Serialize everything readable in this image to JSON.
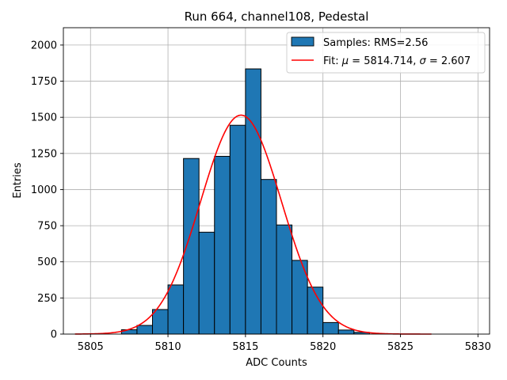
{
  "chart_data": {
    "type": "bar",
    "title": "Run 664, channel108, Pedestal",
    "xlabel": "ADC Counts",
    "ylabel": "Entries",
    "xlim": [
      5803.25,
      5830.75
    ],
    "ylim": [
      0,
      2120
    ],
    "xticks": [
      5805,
      5810,
      5815,
      5820,
      5825,
      5830
    ],
    "yticks": [
      0,
      250,
      500,
      750,
      1000,
      1250,
      1500,
      1750,
      2000
    ],
    "grid": true,
    "legend_position": "top-right",
    "histogram": {
      "name": "Samples: RMS=2.56",
      "bin_edges": [
        5807,
        5808,
        5809,
        5810,
        5811,
        5812,
        5813,
        5814,
        5815,
        5816,
        5817,
        5818,
        5819,
        5820,
        5821,
        5822,
        5823
      ],
      "counts": [
        30,
        60,
        170,
        340,
        1215,
        705,
        1230,
        1445,
        1835,
        1070,
        755,
        510,
        325,
        80,
        28,
        12
      ],
      "color": "#1f77b4"
    },
    "fit": {
      "name": "Fit: μ = 5814.714, σ = 2.607",
      "mu": 5814.714,
      "sigma": 2.607,
      "peak": 1515,
      "x_range": [
        5804,
        5827
      ],
      "color": "#ff0000"
    }
  },
  "legend": {
    "samples_label": "Samples: RMS=2.56",
    "fit_prefix": "Fit: ",
    "mu_symbol": "μ",
    "mu_text": " = 5814.714, ",
    "sigma_symbol": "σ",
    "sigma_text": " = 2.607"
  }
}
